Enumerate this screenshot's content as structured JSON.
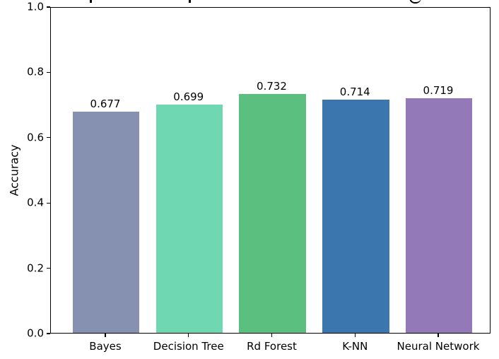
{
  "chart_data": {
    "type": "bar",
    "categories": [
      "Bayes",
      "Decision Tree",
      "Rd Forest",
      "K-NN",
      "Neural Network"
    ],
    "values": [
      0.677,
      0.699,
      0.732,
      0.714,
      0.719
    ],
    "value_labels": [
      "0.677",
      "0.699",
      "0.732",
      "0.714",
      "0.719"
    ],
    "bar_colors": [
      "#8691B2",
      "#6FD8B2",
      "#5BC07F",
      "#3B76AF",
      "#9379B7"
    ],
    "title": "",
    "title_note": "title cropped out of frame; only letter descenders visible at top edge",
    "xlabel": "",
    "ylabel": "Accuracy",
    "ylim": [
      0.0,
      1.0
    ],
    "yticks": [
      "0.0",
      "0.2",
      "0.4",
      "0.6",
      "0.8",
      "1.0"
    ],
    "ytick_values": [
      0.0,
      0.2,
      0.4,
      0.6,
      0.8,
      1.0
    ],
    "grid": false,
    "legend": null
  }
}
